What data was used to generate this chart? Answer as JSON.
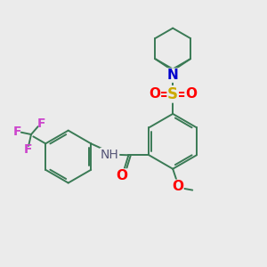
{
  "background_color": "#ebebeb",
  "bond_color": "#3a7a55",
  "n_color": "#0000cc",
  "o_color": "#ff0000",
  "s_color": "#ccaa00",
  "f_color": "#cc44cc",
  "figsize": [
    3.0,
    3.0
  ],
  "dpi": 100,
  "xlim": [
    0,
    10
  ],
  "ylim": [
    0,
    10
  ]
}
